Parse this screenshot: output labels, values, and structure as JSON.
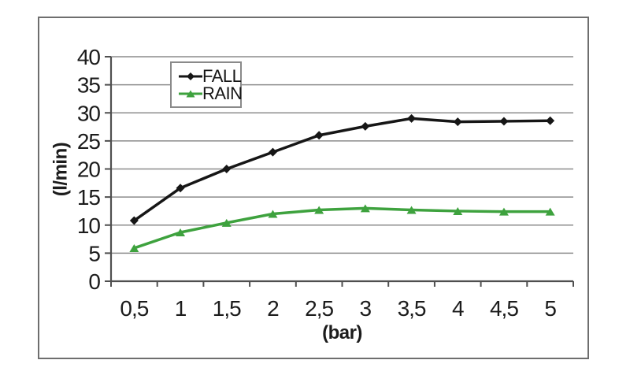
{
  "figure": {
    "background": "#ffffff",
    "border_color": "#6e6e6e"
  },
  "chart_data": {
    "type": "line",
    "x": [
      0.5,
      1,
      1.5,
      2,
      2.5,
      3,
      3.5,
      4,
      4.5,
      5
    ],
    "x_tick_labels": [
      "0,5",
      "1",
      "1,5",
      "2",
      "2,5",
      "3",
      "3,5",
      "4",
      "4,5",
      "5"
    ],
    "xlabel": "(bar)",
    "ylabel": "(l/min)",
    "ylim": [
      0,
      40
    ],
    "y_ticks": [
      0,
      5,
      10,
      15,
      20,
      25,
      30,
      35,
      40
    ],
    "y_tick_labels": [
      "0",
      "5",
      "10",
      "15",
      "20",
      "25",
      "30",
      "35",
      "40"
    ],
    "grid": "horizontal",
    "grid_color": "#8c8c8c",
    "axis_color": "#4f4f4f",
    "text_color": "#1c1c1c",
    "legend_position": "top-center-inside",
    "series": [
      {
        "name": "FALL",
        "color": "#161616",
        "marker": "diamond",
        "values": [
          10.8,
          16.6,
          20,
          23,
          26,
          27.6,
          29,
          28.4,
          28.5,
          28.6
        ]
      },
      {
        "name": "RAIN",
        "color": "#3ea23e",
        "marker": "triangle",
        "values": [
          5.9,
          8.7,
          10.4,
          12,
          12.7,
          13,
          12.7,
          12.5,
          12.4,
          12.4
        ]
      }
    ]
  },
  "legend": {
    "items": [
      {
        "label": "FALL"
      },
      {
        "label": "RAIN"
      }
    ]
  }
}
